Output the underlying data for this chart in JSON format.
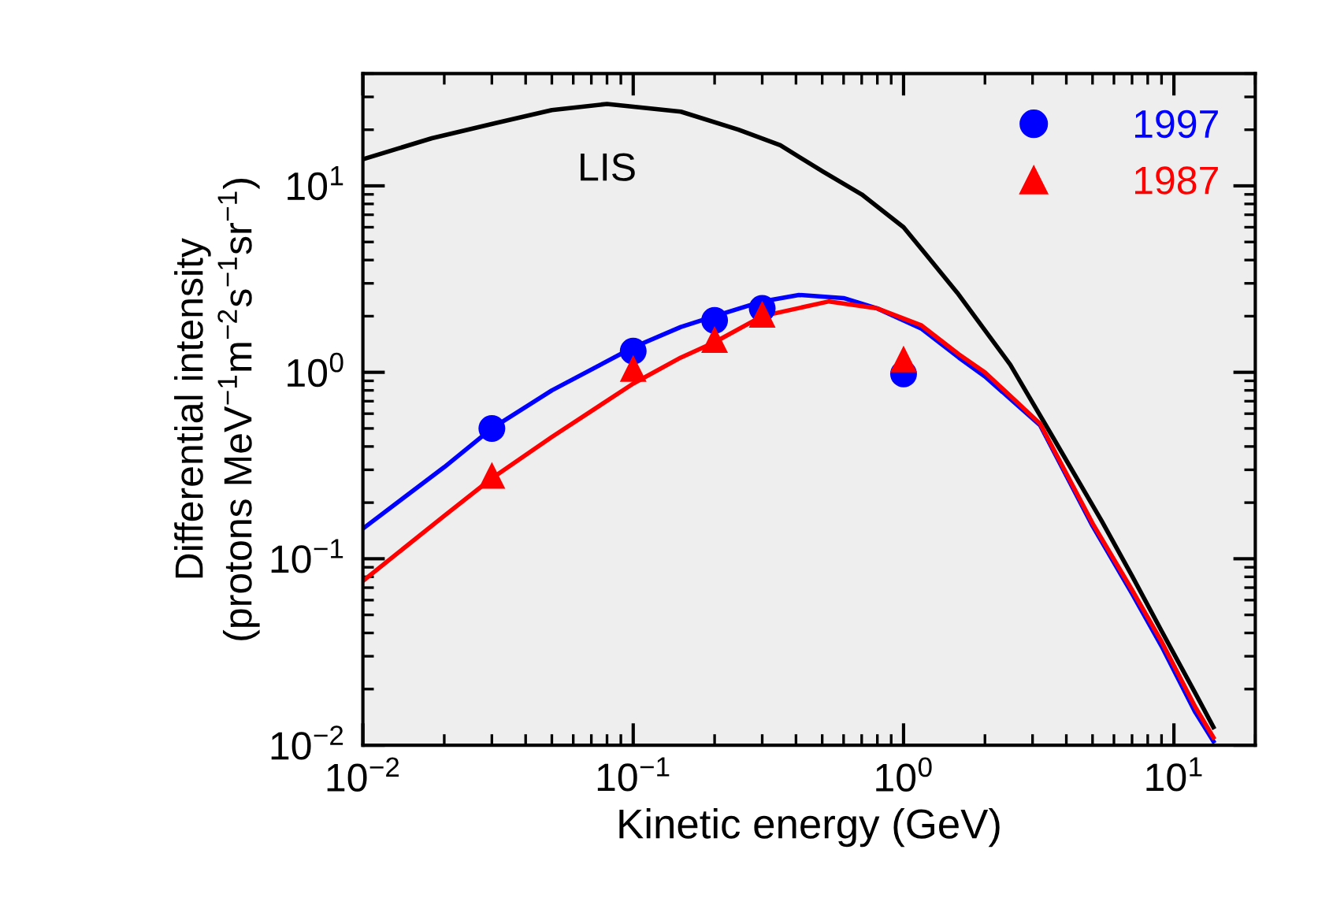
{
  "chart_data": {
    "type": "line",
    "xlabel": "Kinetic energy (GeV)",
    "ylabel": "Differential intensity\n(protons MeV$^{−1}$m$^{−2}$s$^{−1}$sr$^{−1}$)",
    "log": "xy",
    "grid": false,
    "legend": "top right",
    "xlim": [
      0.01,
      20
    ],
    "ylim": [
      0.01,
      40
    ],
    "xticks": [
      {
        "value": 0.01,
        "label": "10$^{−2}$"
      },
      {
        "value": 0.1,
        "label": "10$^{−1}$"
      },
      {
        "value": 1,
        "label": "10$^{0}$"
      },
      {
        "value": 10,
        "label": "10$^{1}$"
      }
    ],
    "yticks": [
      {
        "value": 0.01,
        "label": "10$^{−2}$"
      },
      {
        "value": 0.1,
        "label": "10$^{−1}$"
      },
      {
        "value": 1,
        "label": "10$^{0}$"
      },
      {
        "value": 10,
        "label": "10$^{1}$"
      }
    ],
    "series": [
      {
        "name": "LIS",
        "color": "#000000",
        "x": [
          0.01,
          0.018,
          0.031,
          0.05,
          0.08,
          0.15,
          0.245,
          0.35,
          0.505,
          0.7,
          1.0,
          1.2,
          1.58,
          2.0,
          2.48,
          3.5,
          5.4,
          7.0,
          9.0,
          12.0,
          14.0
        ],
        "values": [
          13.9,
          18,
          21.7,
          25.5,
          27.5,
          25,
          20,
          16.5,
          11.9,
          9.0,
          6.0,
          4.35,
          2.67,
          1.68,
          1.1,
          0.47,
          0.16,
          0.081,
          0.041,
          0.019,
          0.0125
        ]
      },
      {
        "color": "#0000ff",
        "x": [
          0.01,
          0.02,
          0.03,
          0.05,
          0.1,
          0.15,
          0.2,
          0.3,
          0.41,
          0.6,
          0.8,
          1.16,
          1.6,
          2.0,
          3.2,
          5.0,
          7.0,
          9.0,
          12.0,
          14.0
        ],
        "values": [
          0.145,
          0.31,
          0.5,
          0.8,
          1.36,
          1.75,
          2.0,
          2.4,
          2.6,
          2.5,
          2.2,
          1.72,
          1.2,
          0.95,
          0.52,
          0.15,
          0.065,
          0.034,
          0.015,
          0.0105
        ]
      },
      {
        "color": "#ff0000",
        "x": [
          0.01,
          0.02,
          0.03,
          0.05,
          0.1,
          0.15,
          0.2,
          0.3,
          0.53,
          0.8,
          1.16,
          1.6,
          2.0,
          3.2,
          5.0,
          7.0,
          9.0,
          12.0,
          14.0
        ],
        "values": [
          0.076,
          0.17,
          0.27,
          0.45,
          0.87,
          1.2,
          1.45,
          2.0,
          2.4,
          2.2,
          1.79,
          1.25,
          1.0,
          0.53,
          0.155,
          0.068,
          0.036,
          0.016,
          0.011
        ]
      },
      {
        "name": "1997",
        "type": "scatter",
        "marker": "circle",
        "color": "#0000ff",
        "x": [
          0.03,
          0.1,
          0.2,
          0.3,
          1.0
        ],
        "values": [
          0.5,
          1.3,
          1.9,
          2.2,
          0.98
        ]
      },
      {
        "name": "1987",
        "type": "scatter",
        "marker": "triangle",
        "color": "#ff0000",
        "x": [
          0.03,
          0.1,
          0.2,
          0.3,
          1.0
        ],
        "values": [
          0.28,
          1.05,
          1.5,
          2.05,
          1.18
        ]
      }
    ]
  }
}
